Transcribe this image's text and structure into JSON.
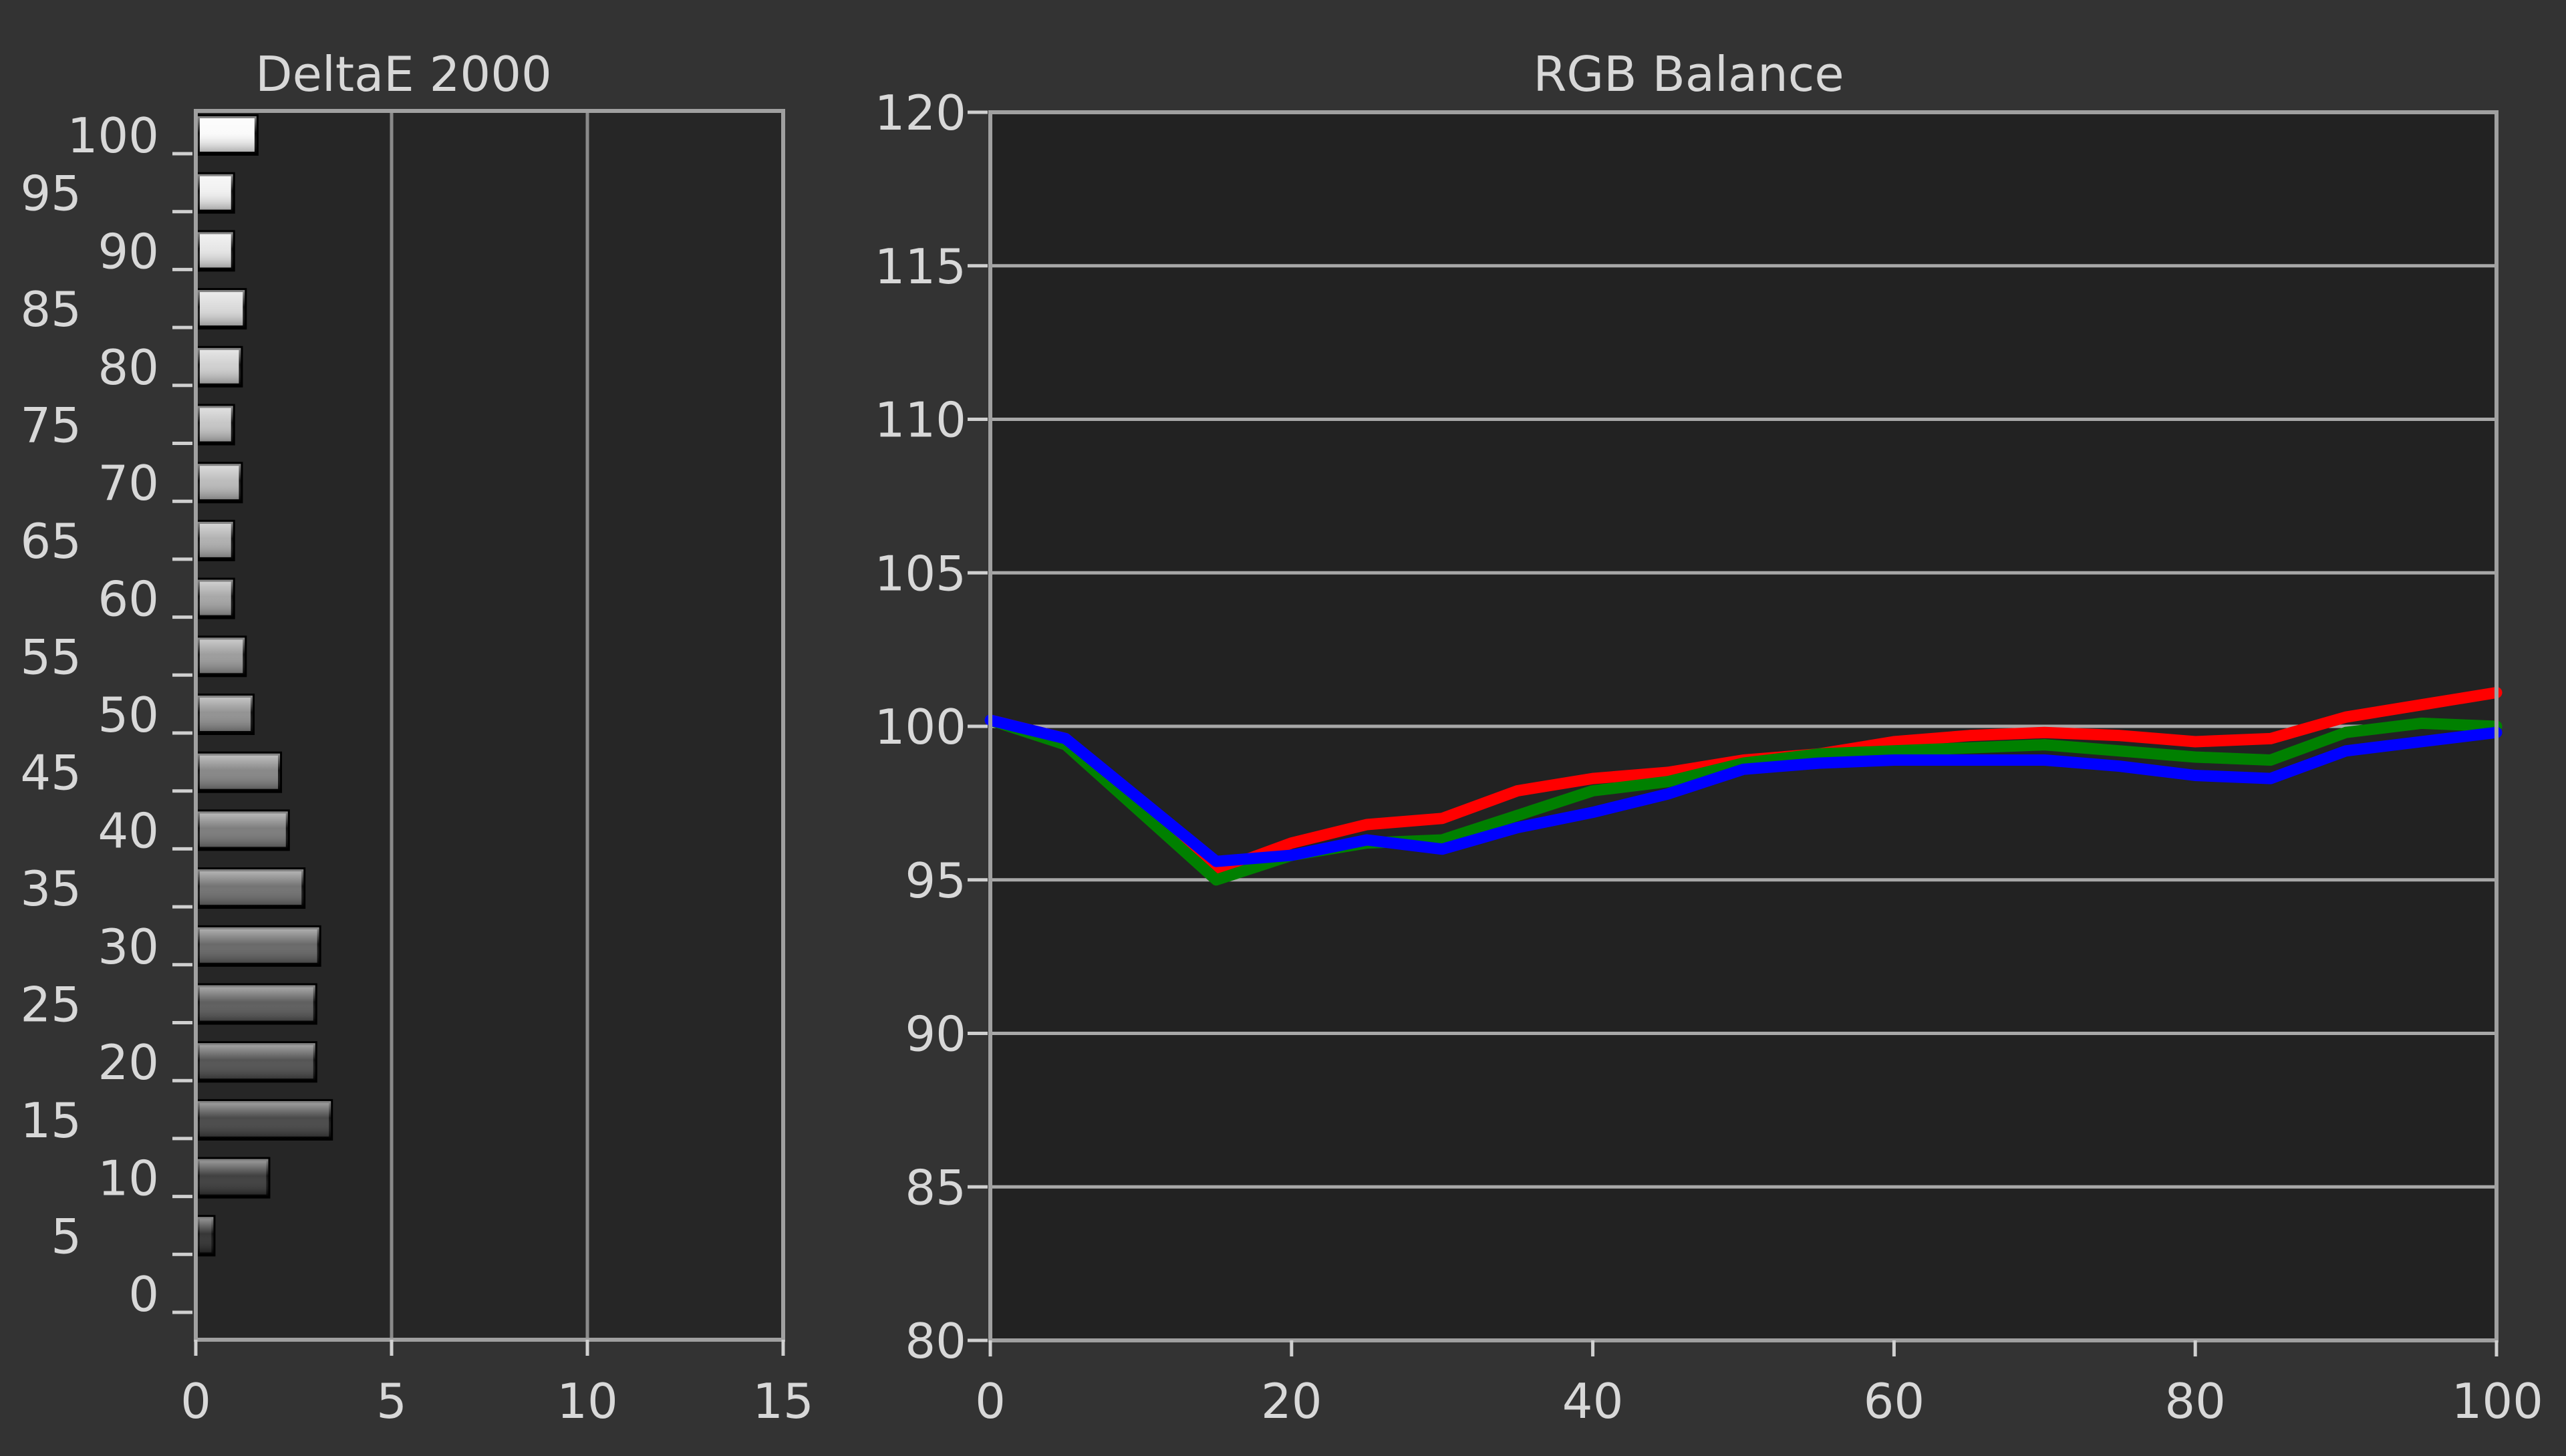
{
  "chart_data": [
    {
      "type": "bar",
      "orientation": "horizontal",
      "title": "DeltaE 2000",
      "categories": [
        "0",
        "5",
        "10",
        "15",
        "20",
        "25",
        "30",
        "35",
        "40",
        "45",
        "50",
        "55",
        "60",
        "65",
        "70",
        "75",
        "80",
        "85",
        "90",
        "95",
        "100"
      ],
      "category_ticks": [
        "0",
        "5",
        "10",
        "15",
        "20",
        "25",
        "30",
        "35",
        "40",
        "45",
        "50",
        "55",
        "60",
        "65",
        "70",
        "75",
        "80",
        "85",
        "90",
        "95",
        "100"
      ],
      "values": [
        0,
        0.4,
        1.8,
        3.4,
        3.0,
        3.0,
        3.1,
        2.7,
        2.3,
        2.1,
        1.4,
        1.2,
        0.9,
        0.9,
        1.1,
        0.9,
        1.1,
        1.2,
        0.9,
        0.9,
        1.5
      ],
      "xlim": [
        0,
        15
      ],
      "x_ticks": [
        "0",
        "5",
        "10",
        "15"
      ],
      "grid": true,
      "legend": "none"
    },
    {
      "type": "line",
      "title": "RGB Balance",
      "x": [
        0,
        5,
        15,
        20,
        25,
        30,
        35,
        40,
        45,
        50,
        55,
        60,
        65,
        70,
        75,
        80,
        85,
        90,
        95,
        100
      ],
      "series": [
        {
          "color": "#ff0000",
          "values": [
            100.2,
            99.6,
            95.3,
            96.2,
            96.8,
            97.0,
            97.9,
            98.3,
            98.5,
            98.9,
            99.1,
            99.5,
            99.7,
            99.8,
            99.7,
            99.5,
            99.6,
            100.3,
            100.7,
            101.1
          ]
        },
        {
          "color": "#008000",
          "values": [
            100.2,
            99.4,
            95.0,
            95.8,
            96.2,
            96.3,
            97.1,
            97.9,
            98.2,
            98.8,
            99.1,
            99.2,
            99.3,
            99.4,
            99.2,
            99.0,
            98.9,
            99.8,
            100.1,
            100.0
          ]
        },
        {
          "color": "#0000ff",
          "values": [
            100.2,
            99.6,
            95.6,
            95.8,
            96.3,
            96.0,
            96.7,
            97.2,
            97.8,
            98.6,
            98.8,
            98.9,
            98.9,
            98.9,
            98.7,
            98.4,
            98.3,
            99.2,
            99.5,
            99.8
          ]
        }
      ],
      "xlim": [
        0,
        100
      ],
      "ylim": [
        80,
        120
      ],
      "x_ticks": [
        "0",
        "20",
        "40",
        "60",
        "80",
        "100"
      ],
      "y_ticks": [
        "80",
        "85",
        "90",
        "95",
        "100",
        "105",
        "110",
        "115",
        "120"
      ],
      "grid": true,
      "legend": "none"
    }
  ]
}
